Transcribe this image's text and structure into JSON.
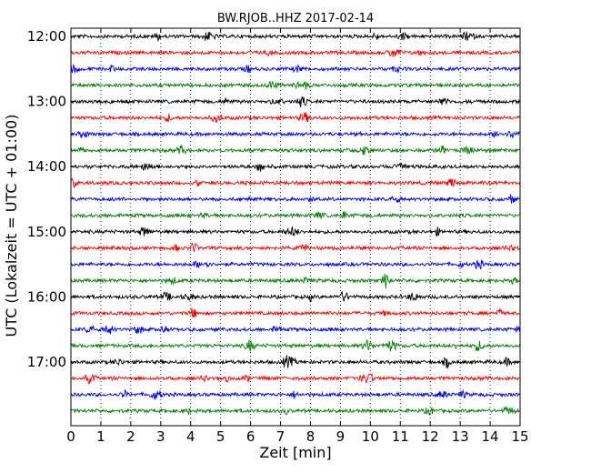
{
  "chart_data": {
    "type": "line",
    "title": "BW.RJOB..HHZ 2017-02-14",
    "xlabel": "Zeit  [min]",
    "ylabel": "UTC (Lokalzeit = UTC + 01:00)",
    "xlim": [
      0,
      15
    ],
    "x_ticks": [
      "0",
      "1",
      "2",
      "3",
      "4",
      "5",
      "6",
      "7",
      "8",
      "9",
      "10",
      "11",
      "12",
      "13",
      "14",
      "15"
    ],
    "y_ticks": [
      "12:00",
      "13:00",
      "14:00",
      "15:00",
      "16:00",
      "17:00"
    ],
    "grid": "vertical dotted at each minute",
    "trace_colors": [
      "#000000",
      "#ff0000",
      "#0000ff",
      "#008000"
    ],
    "traces": [
      {
        "start": "12:00",
        "color": "#000000"
      },
      {
        "start": "12:15",
        "color": "#ff0000"
      },
      {
        "start": "12:30",
        "color": "#0000ff"
      },
      {
        "start": "12:45",
        "color": "#008000"
      },
      {
        "start": "13:00",
        "color": "#000000"
      },
      {
        "start": "13:15",
        "color": "#ff0000"
      },
      {
        "start": "13:30",
        "color": "#0000ff"
      },
      {
        "start": "13:45",
        "color": "#008000"
      },
      {
        "start": "14:00",
        "color": "#000000"
      },
      {
        "start": "14:15",
        "color": "#ff0000"
      },
      {
        "start": "14:30",
        "color": "#0000ff"
      },
      {
        "start": "14:45",
        "color": "#008000"
      },
      {
        "start": "15:00",
        "color": "#000000"
      },
      {
        "start": "15:15",
        "color": "#ff0000"
      },
      {
        "start": "15:30",
        "color": "#0000ff"
      },
      {
        "start": "15:45",
        "color": "#008000"
      },
      {
        "start": "16:00",
        "color": "#000000"
      },
      {
        "start": "16:15",
        "color": "#ff0000"
      },
      {
        "start": "16:30",
        "color": "#0000ff"
      },
      {
        "start": "16:45",
        "color": "#008000"
      },
      {
        "start": "17:00",
        "color": "#000000"
      },
      {
        "start": "17:15",
        "color": "#ff0000"
      },
      {
        "start": "17:30",
        "color": "#0000ff"
      },
      {
        "start": "17:45",
        "color": "#008000"
      }
    ]
  }
}
